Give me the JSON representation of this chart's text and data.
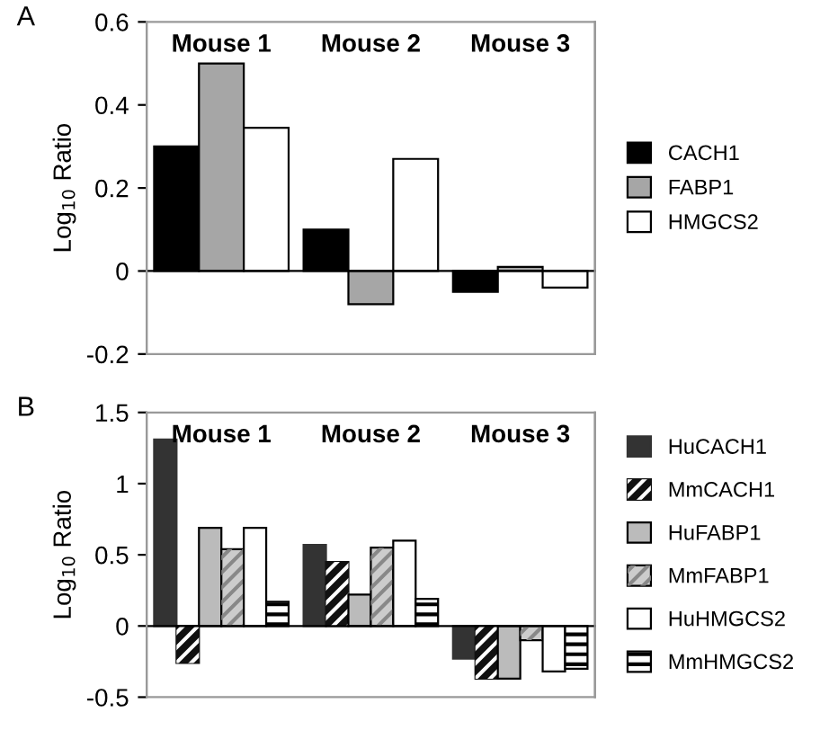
{
  "chart_data": [
    {
      "type": "bar",
      "ylabel": "Log$_{10}$ Ratio",
      "annotations": [
        "A"
      ],
      "categories": [
        "Mouse 1",
        "Mouse 2",
        "Mouse 3"
      ],
      "ylim": [
        -0.2,
        0.6
      ],
      "yticks": [
        -0.2,
        0,
        0.2,
        0.4,
        0.6
      ],
      "legend": "right",
      "series": [
        {
          "name": "CACH1",
          "color": "#000000",
          "values": [
            0.3,
            0.1,
            -0.05
          ]
        },
        {
          "name": "FABP1",
          "color": "#a6a6a6",
          "values": [
            0.5,
            -0.08,
            0.01
          ]
        },
        {
          "name": "HMGCS2",
          "color": "#ffffff",
          "values": [
            0.345,
            0.27,
            -0.04
          ]
        }
      ]
    },
    {
      "type": "bar",
      "ylabel": "Log$_{10}$ Ratio",
      "annotations": [
        "B"
      ],
      "categories": [
        "Mouse 1",
        "Mouse 2",
        "Mouse 3"
      ],
      "ylim": [
        -0.5,
        1.5
      ],
      "yticks": [
        -0.5,
        0,
        0.5,
        1,
        1.5
      ],
      "legend": "right",
      "series": [
        {
          "name": "HuCACH1",
          "color": "#333333",
          "values": [
            1.31,
            0.57,
            -0.23
          ]
        },
        {
          "name": "MmCACH1",
          "color": "#111111",
          "values": [
            -0.26,
            0.45,
            -0.37
          ]
        },
        {
          "name": "HuFABP1",
          "color": "#bbbbbb",
          "values": [
            0.69,
            0.22,
            -0.37
          ]
        },
        {
          "name": "MmFABP1",
          "color": "#cccccc",
          "values": [
            0.54,
            0.55,
            -0.1
          ]
        },
        {
          "name": "HuHMGCS2",
          "color": "#ffffff",
          "values": [
            0.69,
            0.6,
            -0.32
          ]
        },
        {
          "name": "MmHMGCS2",
          "color": "#ffffff",
          "values": [
            0.17,
            0.19,
            -0.3
          ]
        }
      ]
    }
  ]
}
